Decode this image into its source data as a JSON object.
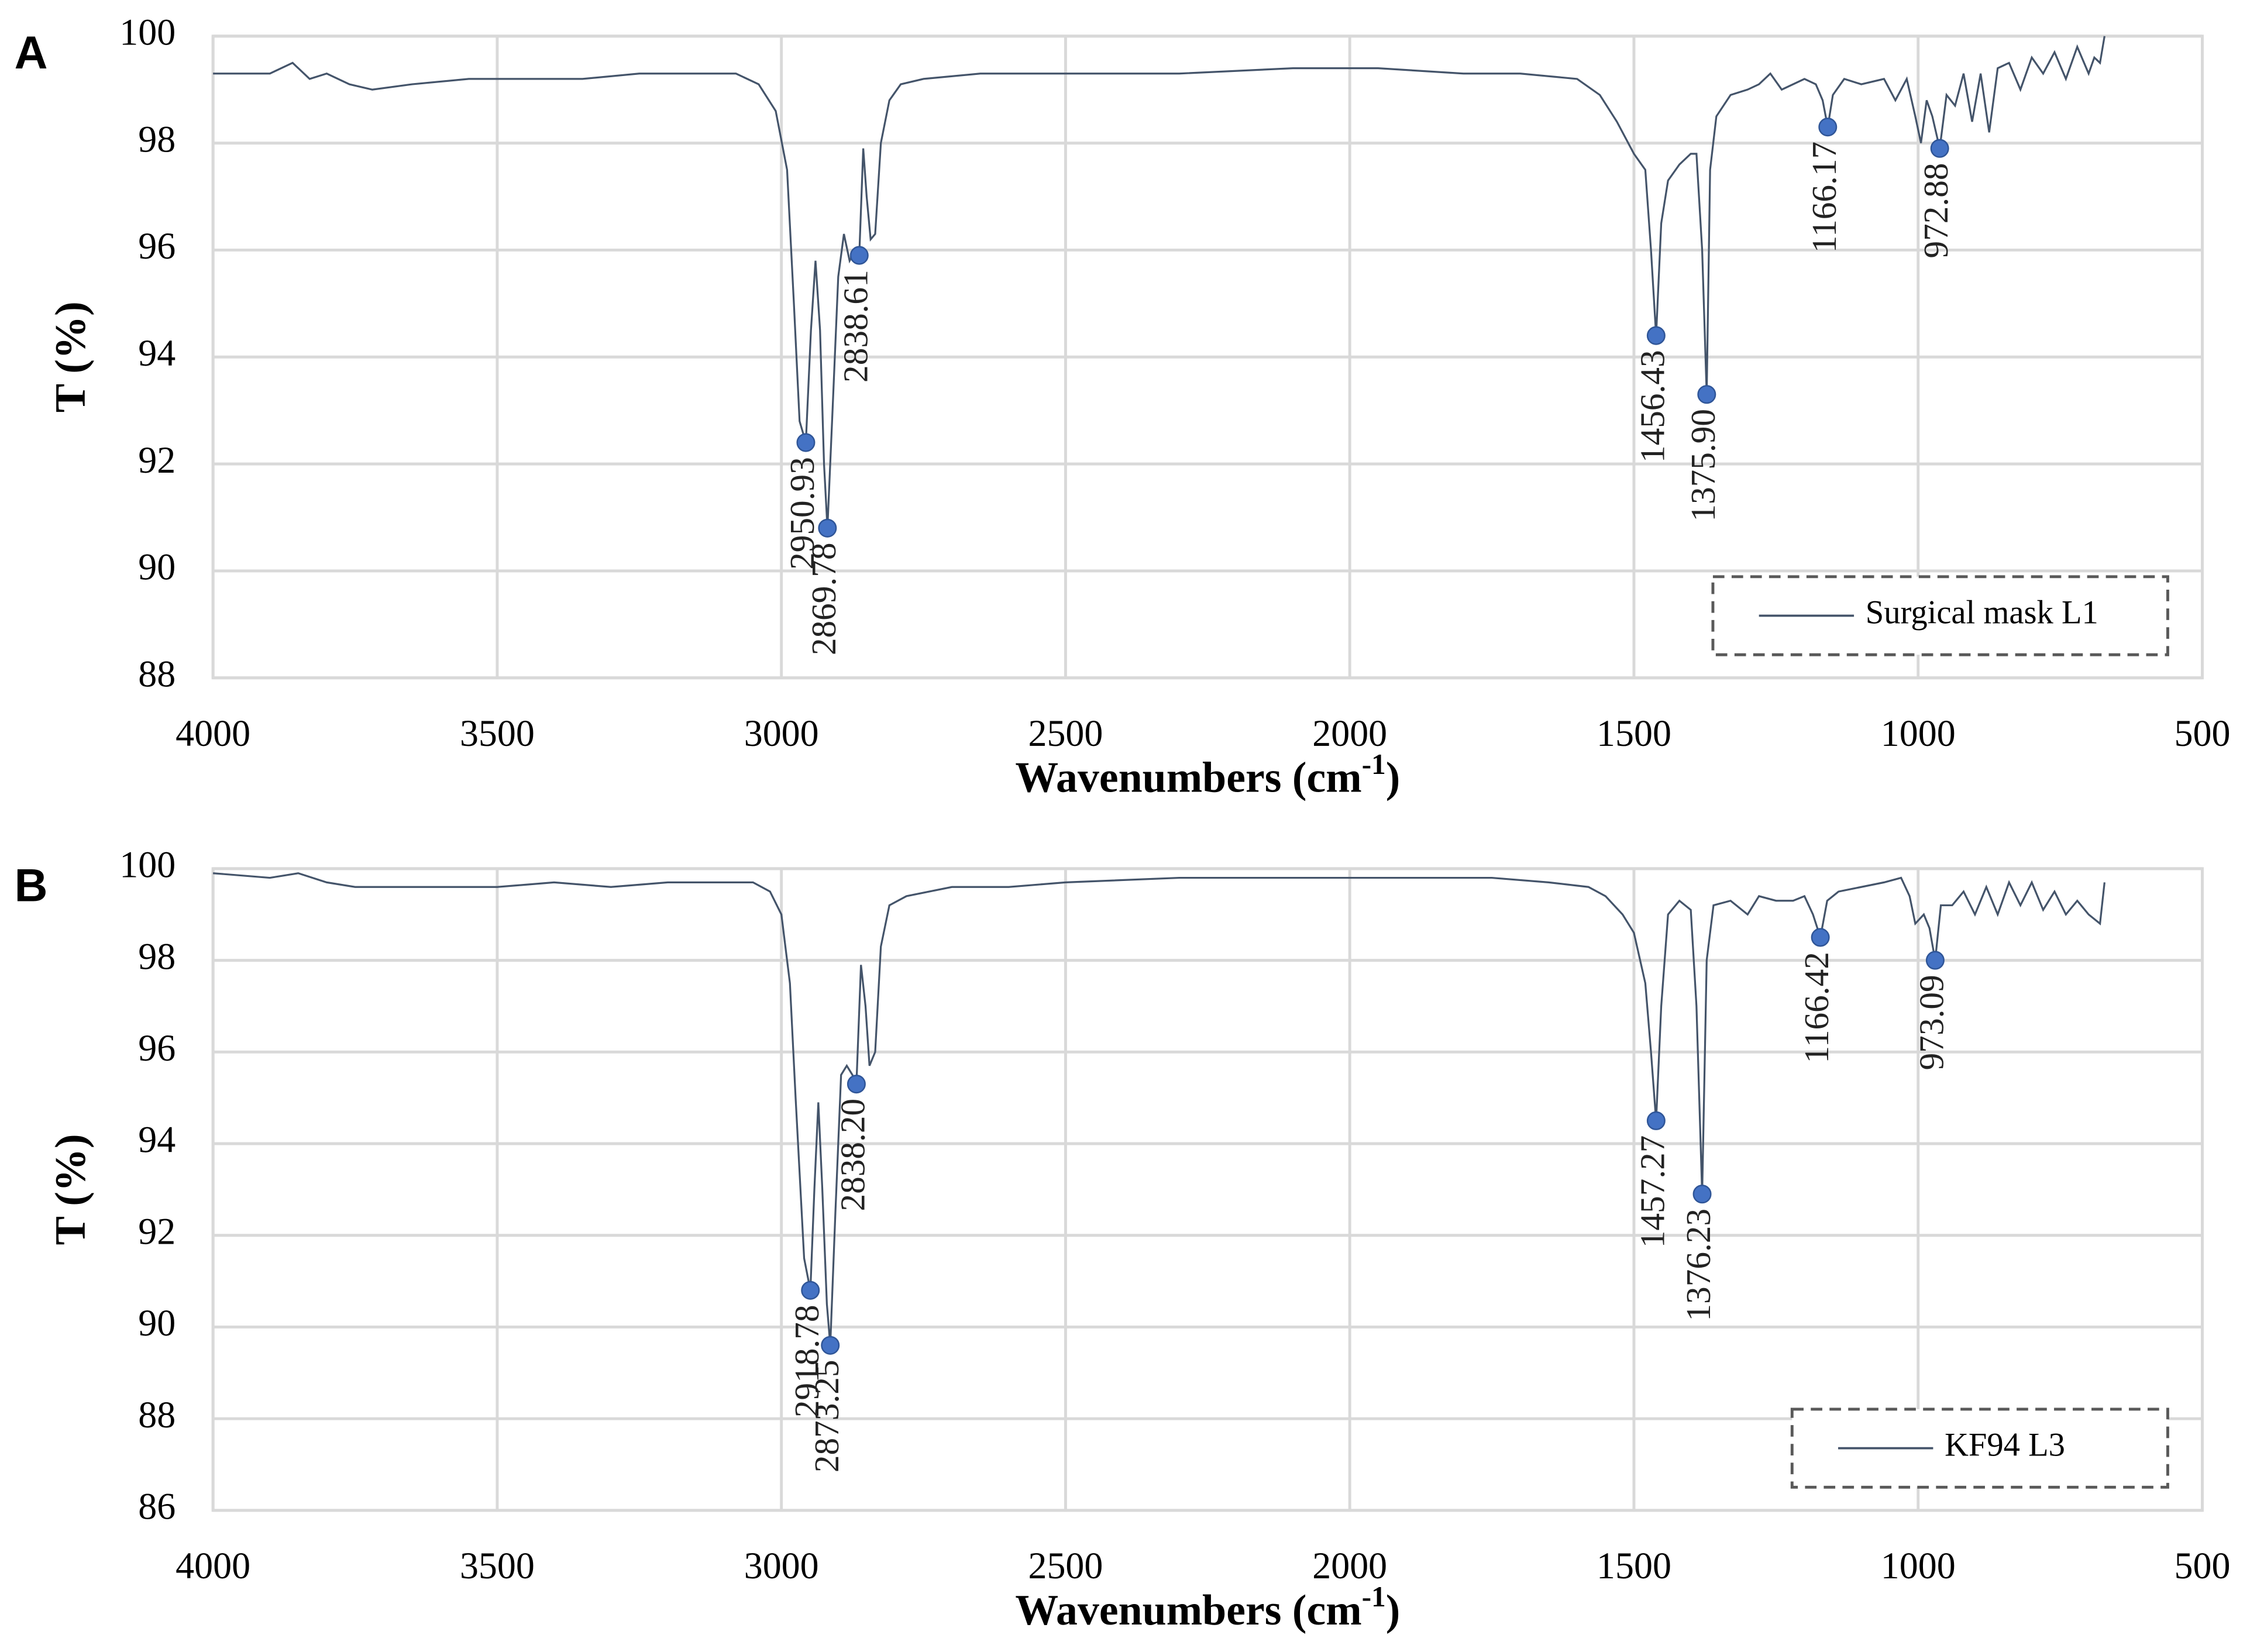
{
  "chart_data": [
    {
      "type": "line",
      "panel": "A",
      "ylabel": "T (%)",
      "xlabel": "Wavenumbers (cm",
      "xlabel_superscript": "-1",
      "xlabel_suffix": ")",
      "xlim": [
        4000,
        500
      ],
      "xticks": [
        4000,
        3500,
        3000,
        2500,
        2000,
        1500,
        1000,
        500
      ],
      "ylim": [
        88,
        100
      ],
      "yticks": [
        88,
        90,
        92,
        94,
        96,
        98,
        100
      ],
      "grid": true,
      "legend": "lower right",
      "marker_color": "#4472c4",
      "series": [
        {
          "name": "Surgical mask L1",
          "color": "#44546a",
          "x": [
            4000,
            3950,
            3900,
            3860,
            3830,
            3800,
            3760,
            3720,
            3650,
            3550,
            3450,
            3350,
            3250,
            3150,
            3080,
            3040,
            3010,
            2990,
            2978,
            2968,
            2957,
            2948,
            2940,
            2932,
            2925,
            2919,
            2910,
            2900,
            2890,
            2880,
            2870,
            2863,
            2856,
            2850,
            2843,
            2835,
            2825,
            2810,
            2790,
            2750,
            2650,
            2500,
            2300,
            2100,
            1950,
            1800,
            1700,
            1600,
            1560,
            1530,
            1500,
            1480,
            1470,
            1461,
            1452,
            1440,
            1420,
            1400,
            1390,
            1380,
            1372,
            1366,
            1355,
            1330,
            1300,
            1280,
            1260,
            1240,
            1200,
            1180,
            1168,
            1159,
            1150,
            1130,
            1100,
            1060,
            1040,
            1020,
            1005,
            995,
            985,
            975,
            962,
            950,
            935,
            920,
            905,
            890,
            875,
            860,
            840,
            820,
            800,
            780,
            760,
            740,
            720,
            700,
            690,
            680,
            672
          ],
          "values": [
            99.3,
            99.3,
            99.3,
            99.5,
            99.2,
            99.3,
            99.1,
            99.0,
            99.1,
            99.2,
            99.2,
            99.2,
            99.3,
            99.3,
            99.3,
            99.1,
            98.6,
            97.5,
            95.0,
            92.8,
            92.4,
            94.5,
            95.8,
            94.5,
            92.0,
            90.8,
            93.0,
            95.5,
            96.3,
            95.8,
            96.0,
            95.9,
            97.9,
            97.0,
            96.2,
            96.3,
            98.0,
            98.8,
            99.1,
            99.2,
            99.3,
            99.3,
            99.3,
            99.4,
            99.4,
            99.3,
            99.3,
            99.2,
            98.9,
            98.4,
            97.8,
            97.5,
            96.0,
            94.4,
            96.5,
            97.3,
            97.6,
            97.8,
            97.8,
            96.0,
            93.3,
            97.5,
            98.5,
            98.9,
            99.0,
            99.1,
            99.3,
            99.0,
            99.2,
            99.1,
            98.8,
            98.3,
            98.9,
            99.2,
            99.1,
            99.2,
            98.8,
            99.2,
            98.5,
            98.0,
            98.8,
            98.5,
            97.9,
            98.9,
            98.7,
            99.3,
            98.4,
            99.3,
            98.2,
            99.4,
            99.5,
            99.0,
            99.6,
            99.3,
            99.7,
            99.2,
            99.8,
            99.3,
            99.6,
            99.5,
            100.0
          ]
        }
      ],
      "annotations": [
        {
          "x": 2957,
          "y": 92.4,
          "text": "2950.93"
        },
        {
          "x": 2919,
          "y": 90.8,
          "text": "2869.78"
        },
        {
          "x": 2863,
          "y": 95.9,
          "text": "2838.61"
        },
        {
          "x": 1461,
          "y": 94.4,
          "text": "1456.43"
        },
        {
          "x": 1372,
          "y": 93.3,
          "text": "1375.90"
        },
        {
          "x": 1159,
          "y": 98.3,
          "text": "1166.17"
        },
        {
          "x": 962,
          "y": 97.9,
          "text": "972.88"
        }
      ]
    },
    {
      "type": "line",
      "panel": "B",
      "ylabel": "T (%)",
      "xlabel": "Wavenumbers (cm",
      "xlabel_superscript": "-1",
      "xlabel_suffix": ")",
      "xlim": [
        4000,
        500
      ],
      "xticks": [
        4000,
        3500,
        3000,
        2500,
        2000,
        1500,
        1000,
        500
      ],
      "ylim": [
        86,
        100
      ],
      "yticks": [
        86,
        88,
        90,
        92,
        94,
        96,
        98,
        100
      ],
      "grid": true,
      "legend": "lower right",
      "marker_color": "#4472c4",
      "series": [
        {
          "name": "KF94 L3",
          "color": "#44546a",
          "x": [
            4000,
            3900,
            3850,
            3800,
            3750,
            3700,
            3600,
            3500,
            3400,
            3300,
            3200,
            3100,
            3050,
            3020,
            3000,
            2985,
            2975,
            2960,
            2949,
            2942,
            2935,
            2928,
            2920,
            2914,
            2905,
            2895,
            2885,
            2875,
            2868,
            2860,
            2852,
            2845,
            2835,
            2825,
            2810,
            2780,
            2700,
            2600,
            2500,
            2300,
            2100,
            1900,
            1750,
            1650,
            1580,
            1550,
            1520,
            1500,
            1480,
            1470,
            1461,
            1452,
            1440,
            1420,
            1400,
            1390,
            1380,
            1372,
            1360,
            1330,
            1300,
            1280,
            1250,
            1220,
            1200,
            1185,
            1172,
            1160,
            1140,
            1100,
            1060,
            1030,
            1015,
            1005,
            990,
            980,
            970,
            960,
            940,
            920,
            900,
            880,
            860,
            840,
            820,
            800,
            780,
            760,
            740,
            720,
            700,
            680,
            672
          ],
          "values": [
            99.9,
            99.8,
            99.9,
            99.7,
            99.6,
            99.6,
            99.6,
            99.6,
            99.7,
            99.6,
            99.7,
            99.7,
            99.7,
            99.5,
            99.0,
            97.5,
            95.0,
            91.5,
            90.8,
            93.0,
            94.9,
            93.0,
            90.5,
            89.6,
            92.5,
            95.5,
            95.7,
            95.5,
            95.3,
            97.9,
            97.0,
            95.7,
            96.0,
            98.3,
            99.2,
            99.4,
            99.6,
            99.6,
            99.7,
            99.8,
            99.8,
            99.8,
            99.8,
            99.7,
            99.6,
            99.4,
            99.0,
            98.6,
            97.5,
            96.0,
            94.5,
            97.0,
            99.0,
            99.3,
            99.1,
            97.0,
            92.9,
            98.0,
            99.2,
            99.3,
            99.0,
            99.4,
            99.3,
            99.3,
            99.4,
            99.0,
            98.5,
            99.3,
            99.5,
            99.6,
            99.7,
            99.8,
            99.4,
            98.8,
            99.0,
            98.7,
            98.0,
            99.2,
            99.2,
            99.5,
            99.0,
            99.6,
            99.0,
            99.7,
            99.2,
            99.7,
            99.1,
            99.5,
            99.0,
            99.3,
            99.0,
            98.8,
            99.7
          ]
        }
      ],
      "annotations": [
        {
          "x": 2949,
          "y": 90.8,
          "text": "2918.78"
        },
        {
          "x": 2914,
          "y": 89.6,
          "text": "2873.25"
        },
        {
          "x": 2868,
          "y": 95.3,
          "text": "2838.20"
        },
        {
          "x": 1461,
          "y": 94.5,
          "text": "1457.27"
        },
        {
          "x": 1380,
          "y": 92.9,
          "text": "1376.23"
        },
        {
          "x": 1172,
          "y": 98.5,
          "text": "1166.42"
        },
        {
          "x": 970,
          "y": 98.0,
          "text": "973.09"
        }
      ]
    }
  ]
}
